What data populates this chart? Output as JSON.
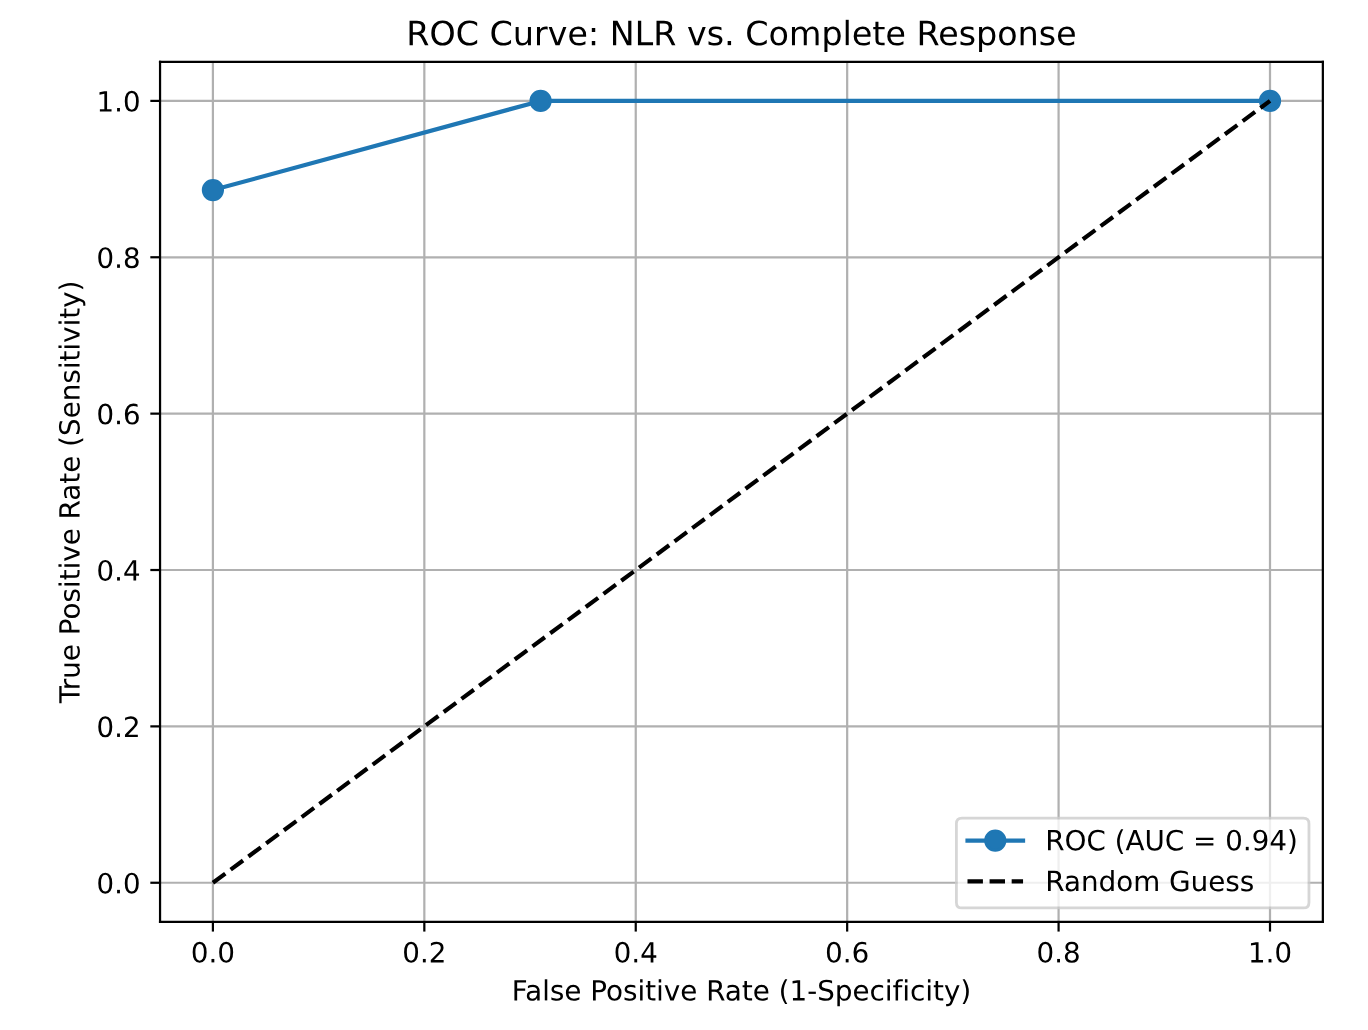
{
  "chart_data": {
    "type": "line",
    "title": "ROC Curve: NLR vs. Complete Response",
    "xlabel": "False Positive Rate (1-Specificity)",
    "ylabel": "True Positive Rate (Sensitivity)",
    "series": [
      {
        "name": "ROC (AUC = 0.94)",
        "color": "#1f77b4",
        "x": [
          0.0,
          0.31,
          1.0
        ],
        "values": [
          0.886,
          1.0,
          1.0
        ],
        "marker": "circle",
        "line_style": "solid"
      },
      {
        "name": "Random Guess",
        "color": "#000000",
        "x": [
          0.0,
          1.0
        ],
        "values": [
          0.0,
          1.0
        ],
        "marker": "none",
        "line_style": "dashed"
      }
    ],
    "xlim": [
      -0.05,
      1.05
    ],
    "ylim": [
      -0.05,
      1.05
    ],
    "xticks": [
      {
        "value": 0,
        "label": "0.0"
      },
      0.2,
      0.4,
      0.6,
      0.8,
      {
        "value": 1,
        "label": "1.0"
      }
    ],
    "yticks": [
      {
        "value": 0,
        "label": "0.0"
      },
      0.2,
      0.4,
      0.6,
      0.8,
      {
        "value": 1,
        "label": "1.0"
      }
    ],
    "grid": true,
    "legend": "bottom right"
  }
}
